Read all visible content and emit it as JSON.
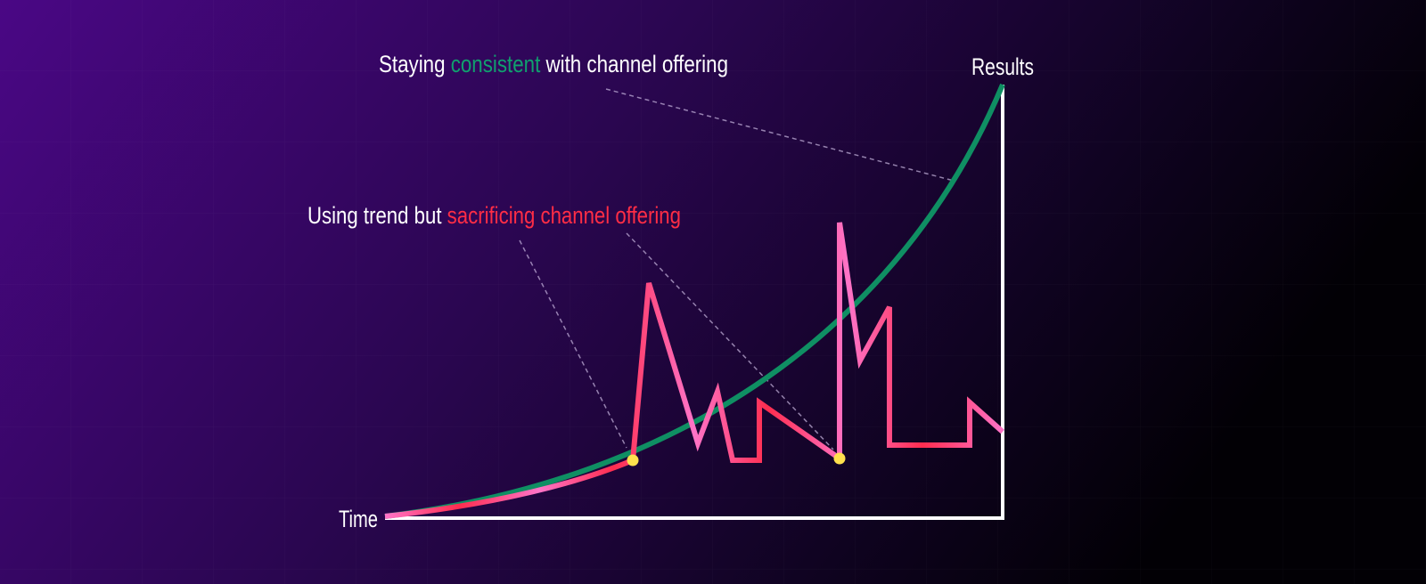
{
  "annotations": {
    "consistent": {
      "prefix": "Staying ",
      "highlight": "consistent",
      "suffix": " with channel offering"
    },
    "trend": {
      "prefix": "Using trend but ",
      "highlight": "sacrificing channel offering"
    }
  },
  "axes": {
    "y": "Results",
    "x": "Time"
  }
}
